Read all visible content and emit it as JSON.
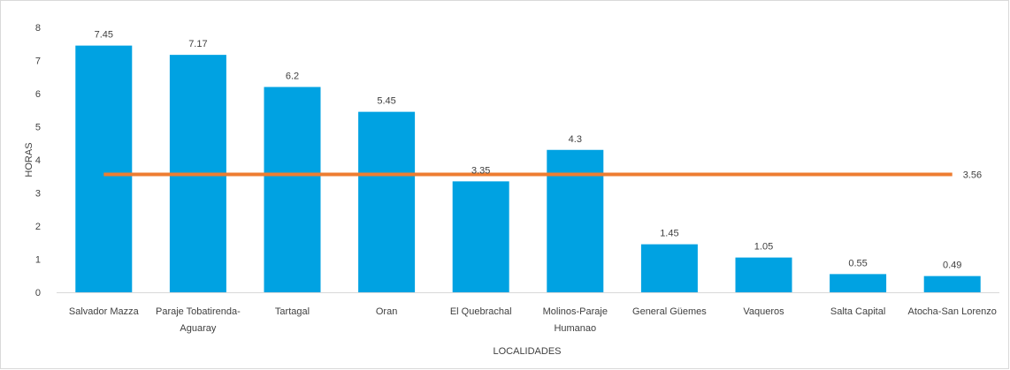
{
  "chart_data": {
    "type": "bar",
    "title": "",
    "xlabel": "LOCALIDADES",
    "ylabel": "HORAS",
    "ylim": [
      0,
      8
    ],
    "yticks": [
      "0",
      "1",
      "2",
      "3",
      "4",
      "5",
      "6",
      "7",
      "8"
    ],
    "grid": false,
    "categories": [
      [
        "Salvador Mazza"
      ],
      [
        "Paraje Tobatirenda-",
        "Aguaray"
      ],
      [
        "Tartagal"
      ],
      [
        "Oran"
      ],
      [
        "El Quebrachal"
      ],
      [
        "Molinos-Paraje",
        "Humanao"
      ],
      [
        "General Güemes"
      ],
      [
        "Vaqueros"
      ],
      [
        "Salta Capital"
      ],
      [
        "Atocha-San Lorenzo"
      ]
    ],
    "series": [
      {
        "type": "bar",
        "color": "#00a2e2",
        "values": [
          7.45,
          7.17,
          6.2,
          5.45,
          3.35,
          4.3,
          1.45,
          1.05,
          0.55,
          0.49
        ],
        "labels": [
          "7.45",
          "7.17",
          "6.2",
          "5.45",
          "3.35",
          "4.3",
          "1.45",
          "1.05",
          "0.55",
          "0.49"
        ]
      },
      {
        "type": "line",
        "color": "#ee7d31",
        "value": 3.56,
        "label": "3.56"
      }
    ]
  }
}
